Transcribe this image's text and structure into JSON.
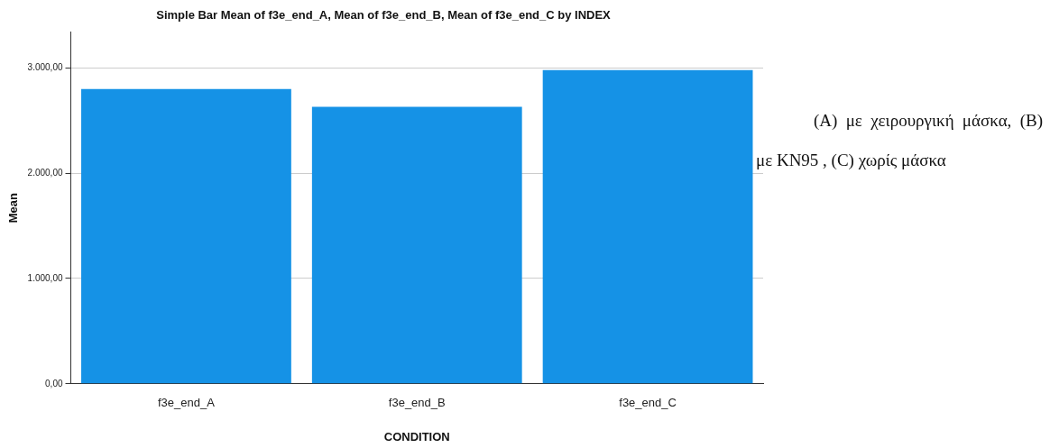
{
  "chart_data": {
    "type": "bar",
    "title": "Simple Bar Mean of f3e_end_A, Mean of f3e_end_B, Mean of f3e_end_C by INDEX",
    "xlabel": "CONDITION",
    "ylabel": "Mean",
    "categories": [
      "f3e_end_A",
      "f3e_end_B",
      "f3e_end_C"
    ],
    "values": [
      2800,
      2630,
      2980
    ],
    "color": "#1592e6",
    "ylim": [
      0,
      3340
    ],
    "yticks": [
      {
        "value": 0,
        "label": "0,00"
      },
      {
        "value": 1000,
        "label": "1.000,00"
      },
      {
        "value": 2000,
        "label": "2.000,00"
      },
      {
        "value": 3000,
        "label": "3.000,00"
      }
    ],
    "grid": "y",
    "annotations": [
      "(A) με χειρουργική μάσκα, (B) με KN95 , (C) χωρίς μάσκα"
    ]
  }
}
